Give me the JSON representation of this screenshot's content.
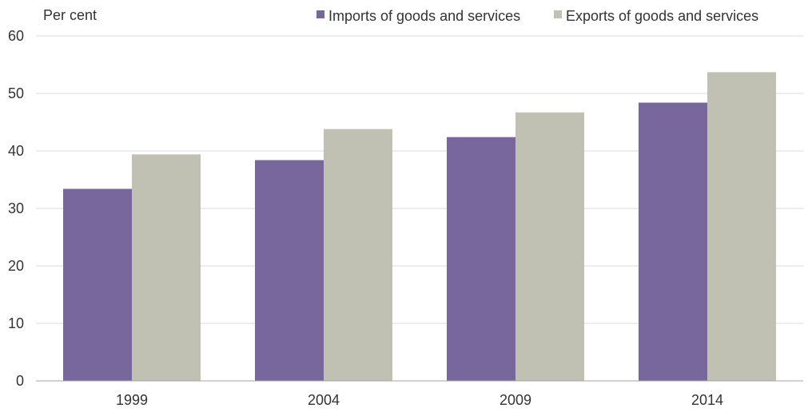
{
  "chart_data": {
    "type": "bar",
    "ylabel": "Per cent",
    "categories": [
      "1999",
      "2004",
      "2009",
      "2014"
    ],
    "series": [
      {
        "name": "Imports of goods and services",
        "values": [
          33.4,
          38.4,
          42.4,
          48.4
        ],
        "color": "#77679c"
      },
      {
        "name": "Exports of goods and services",
        "values": [
          39.4,
          43.8,
          46.7,
          53.7
        ],
        "color": "#c0c1b3"
      }
    ],
    "ylim": [
      0,
      60
    ],
    "yticks": [
      0,
      10,
      20,
      30,
      40,
      50,
      60
    ],
    "grid": true,
    "legend_position": "top"
  }
}
